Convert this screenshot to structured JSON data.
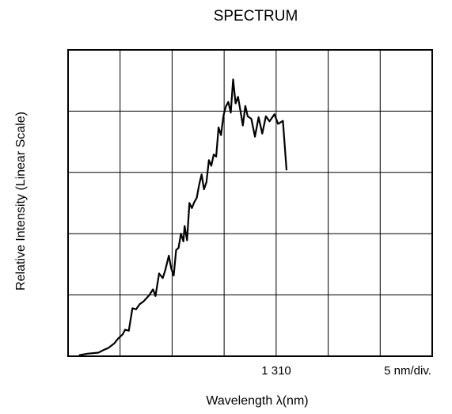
{
  "chart_data": {
    "type": "line",
    "title": "SPECTRUM",
    "xlabel": "Wavelength λ(nm)",
    "ylabel": "Relative Intensity (Linear Scale)",
    "x_center_label": "1 310",
    "x_scale_label": "5 nm/div.",
    "x_center": 1310,
    "x_per_div": 5,
    "xlim": [
      1300,
      1330
    ],
    "ylim": [
      0,
      6
    ],
    "grid": true,
    "x_divisions": 7,
    "y_divisions": 5,
    "series": [
      {
        "x": [
          1300.9,
          1301.6,
          1302.5,
          1302.9,
          1303.3,
          1303.8,
          1304.1,
          1304.5,
          1304.7,
          1305.0,
          1305.3,
          1305.6,
          1305.9,
          1306.2,
          1306.4,
          1306.7,
          1307.0,
          1307.2,
          1307.5,
          1307.8,
          1308.0,
          1308.3,
          1308.5,
          1308.7,
          1308.9,
          1309.1,
          1309.3,
          1309.5,
          1309.6,
          1309.8,
          1310.0,
          1310.2,
          1310.4,
          1310.6,
          1310.8,
          1311.0,
          1311.2,
          1311.4,
          1311.6,
          1311.8,
          1312.0,
          1312.2,
          1312.4,
          1312.6,
          1312.8,
          1313.0,
          1313.2,
          1313.4,
          1313.6,
          1313.8,
          1314.0,
          1314.2,
          1314.4,
          1314.6,
          1314.8,
          1315.1,
          1315.4,
          1315.7,
          1316.0,
          1316.3,
          1316.6,
          1317.0,
          1317.3,
          1317.7,
          1318.0
        ],
        "y": [
          0.02,
          0.05,
          0.07,
          0.12,
          0.16,
          0.25,
          0.34,
          0.43,
          0.52,
          0.5,
          0.94,
          0.92,
          1.02,
          1.07,
          1.12,
          1.2,
          1.31,
          1.18,
          1.62,
          1.53,
          1.68,
          1.97,
          1.72,
          1.58,
          2.08,
          2.12,
          2.4,
          2.25,
          2.55,
          2.27,
          3.0,
          2.9,
          3.02,
          3.1,
          3.36,
          3.56,
          3.27,
          3.41,
          3.84,
          3.73,
          3.95,
          3.91,
          4.48,
          4.33,
          4.71,
          4.89,
          4.98,
          4.77,
          5.42,
          4.95,
          5.08,
          4.81,
          4.52,
          4.9,
          4.7,
          4.65,
          4.3,
          4.68,
          4.36,
          4.7,
          4.6,
          4.74,
          4.55,
          4.61,
          3.64
        ]
      }
    ]
  }
}
